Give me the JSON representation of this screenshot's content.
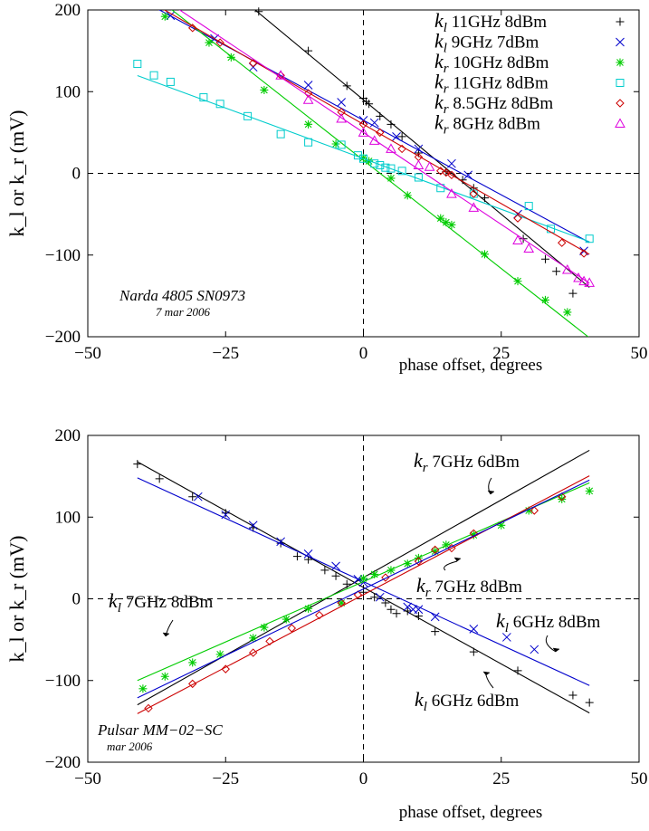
{
  "chart_data": [
    {
      "type": "scatter",
      "xlabel": "phase offset, degrees",
      "ylabel": "k_l or k_r (mV)",
      "xlim": [
        -50,
        50
      ],
      "ylim": [
        -200,
        200
      ],
      "xticks": [
        "−50",
        "−25",
        "0",
        "25",
        "50"
      ],
      "yticks": [
        "200",
        "100",
        "0",
        "−100",
        "−200"
      ],
      "grid": false,
      "legend_position": "top-right",
      "annotation": {
        "line1": "Narda 4805 SN0973",
        "line2": "7 mar 2006"
      },
      "series": [
        {
          "name": "11GHz 8dBm",
          "sym": "l",
          "marker": "plus",
          "color": "#000000",
          "fit": [
            90,
            -5.6
          ],
          "x": [
            -19,
            -10,
            -3,
            0,
            0.5,
            1,
            3,
            5,
            7,
            10,
            15,
            18,
            20,
            22,
            29,
            33,
            35,
            38
          ],
          "y": [
            198,
            150,
            107,
            92,
            88,
            85,
            70,
            60,
            45,
            25,
            2,
            -8,
            -18,
            -30,
            -80,
            -105,
            -120,
            -147
          ]
        },
        {
          "name": "9GHz 7dBm",
          "sym": "l",
          "marker": "x",
          "color": "#0000cc",
          "fit": [
            65,
            -3.65
          ],
          "x": [
            -35,
            -27,
            -20,
            -10,
            -4,
            0,
            2,
            6,
            10,
            16,
            19,
            28,
            40
          ],
          "y": [
            193,
            165,
            130,
            108,
            87,
            65,
            62,
            45,
            30,
            12,
            -2,
            -50,
            -95
          ]
        },
        {
          "name": "10GHz 8dBm",
          "sym": "r",
          "marker": "star",
          "color": "#00cc00",
          "fit": [
            16,
            -5.3
          ],
          "x": [
            -36,
            -28,
            -24,
            -18,
            -10,
            -5,
            0,
            1,
            5,
            8,
            14,
            15,
            16,
            22,
            28,
            33,
            37
          ],
          "y": [
            192,
            160,
            142,
            102,
            60,
            36,
            19,
            15,
            -6,
            -27,
            -55,
            -60,
            -63,
            -99,
            -132,
            -155,
            -170
          ]
        },
        {
          "name": "11GHz 8dBm",
          "sym": "r",
          "marker": "square",
          "color": "#00cccc",
          "fit": [
            18,
            -2.48
          ],
          "x": [
            -41,
            -38,
            -35,
            -29,
            -26,
            -21,
            -15,
            -10,
            -4,
            -1,
            0,
            2,
            3,
            4,
            5,
            7,
            10,
            14,
            20,
            30,
            34,
            41
          ],
          "y": [
            134,
            120,
            112,
            93,
            85,
            70,
            48,
            38,
            35,
            22,
            18,
            12,
            10,
            7,
            6,
            3,
            -5,
            -18,
            -25,
            -40,
            -68,
            -80
          ]
        },
        {
          "name": "8.5GHz 8dBm",
          "sym": "r",
          "marker": "diamond",
          "color": "#cc0000",
          "fit": [
            60,
            -3.88
          ],
          "x": [
            -31,
            -26,
            -20,
            -15,
            -10,
            -4,
            0,
            3,
            7,
            10,
            14,
            15,
            16,
            20,
            28,
            36,
            40
          ],
          "y": [
            178,
            160,
            135,
            120,
            98,
            75,
            60,
            50,
            30,
            20,
            3,
            1,
            -2,
            -25,
            -55,
            -85,
            -98
          ]
        },
        {
          "name": "8GHz 8dBm",
          "sym": "r",
          "marker": "triangle",
          "color": "#dd00dd",
          "fit": [
            50,
            -4.5
          ],
          "x": [
            -15,
            -10,
            -4,
            0,
            2,
            5,
            10,
            12,
            16,
            20,
            28,
            30,
            37,
            39,
            40,
            41
          ],
          "y": [
            120,
            90,
            67,
            50,
            40,
            30,
            10,
            8,
            -25,
            -42,
            -82,
            -92,
            -118,
            -128,
            -132,
            -134
          ]
        }
      ]
    },
    {
      "type": "scatter",
      "xlabel": "phase offset, degrees",
      "ylabel": "k_l or k_r (mV)",
      "xlim": [
        -50,
        50
      ],
      "ylim": [
        -200,
        200
      ],
      "xticks": [
        "−50",
        "−25",
        "0",
        "25",
        "50"
      ],
      "yticks": [
        "200",
        "100",
        "0",
        "−100",
        "−200"
      ],
      "grid": false,
      "annotation": {
        "line1": "Pulsar MM−02−SC",
        "line2": "mar 2006"
      },
      "labels": [
        {
          "sym": "r",
          "text": "7GHz 6dBm"
        },
        {
          "sym": "r",
          "text": "7GHz 8dBm"
        },
        {
          "sym": "l",
          "text": "7GHz 8dBm"
        },
        {
          "sym": "l",
          "text": "6GHz 8dBm"
        },
        {
          "sym": "l",
          "text": "6GHz 6dBm"
        }
      ],
      "series": [
        {
          "name": "",
          "marker": "plus",
          "color": "#000000",
          "fit": [
            14,
            -3.75
          ],
          "x": [
            -41,
            -37,
            -31,
            -25,
            -20,
            -15,
            -12,
            -10,
            -7,
            -5,
            -3,
            0,
            2,
            4,
            5,
            6,
            8,
            10,
            13,
            20,
            28,
            38,
            41
          ],
          "y": [
            165,
            147,
            125,
            105,
            87,
            68,
            52,
            48,
            35,
            28,
            18,
            8,
            2,
            -5,
            -13,
            -18,
            -15,
            -21,
            -40,
            -65,
            -88,
            -118,
            -127
          ]
        },
        {
          "name": "",
          "marker": "plus",
          "color": "#000000",
          "fit": [
            26,
            3.8
          ],
          "x": [],
          "y": []
        },
        {
          "name": "",
          "marker": "x",
          "color": "#0000cc",
          "fit": [
            21,
            -3.1
          ],
          "x": [
            -30,
            -25,
            -20,
            -15,
            -10,
            -5,
            -1,
            0,
            3,
            8,
            9,
            10,
            13,
            20,
            26,
            31
          ],
          "y": [
            125,
            103,
            90,
            70,
            55,
            40,
            24,
            20,
            2,
            -10,
            -13,
            -13,
            -22,
            -37,
            -47,
            -62
          ]
        },
        {
          "name": "",
          "marker": "star",
          "color": "#00cc00",
          "fit": [
            21,
            2.95
          ],
          "x": [
            -40,
            -36,
            -31,
            -26,
            -20,
            -18,
            -14,
            -10,
            -4,
            0,
            2,
            5,
            8,
            10,
            13,
            15,
            20,
            25,
            30,
            36,
            41
          ],
          "y": [
            -110,
            -95,
            -78,
            -68,
            -48,
            -35,
            -25,
            -12,
            -5,
            25,
            30,
            35,
            43,
            50,
            58,
            66,
            78,
            90,
            108,
            122,
            132
          ]
        },
        {
          "name": "",
          "marker": "diamond",
          "color": "#cc0000",
          "fit": [
            5,
            3.55
          ],
          "x": [
            -39,
            -31,
            -25,
            -20,
            -17,
            -13,
            -8,
            -4,
            -1,
            4,
            10,
            13,
            16,
            20,
            31,
            36
          ],
          "y": [
            -134,
            -104,
            -86,
            -66,
            -52,
            -36,
            -20,
            -5,
            5,
            26,
            46,
            60,
            62,
            80,
            108,
            125
          ]
        },
        {
          "name": "",
          "marker": "none",
          "color": "#0000cc",
          "fit": [
            12,
            3.25
          ],
          "x": [],
          "y": []
        }
      ]
    }
  ]
}
